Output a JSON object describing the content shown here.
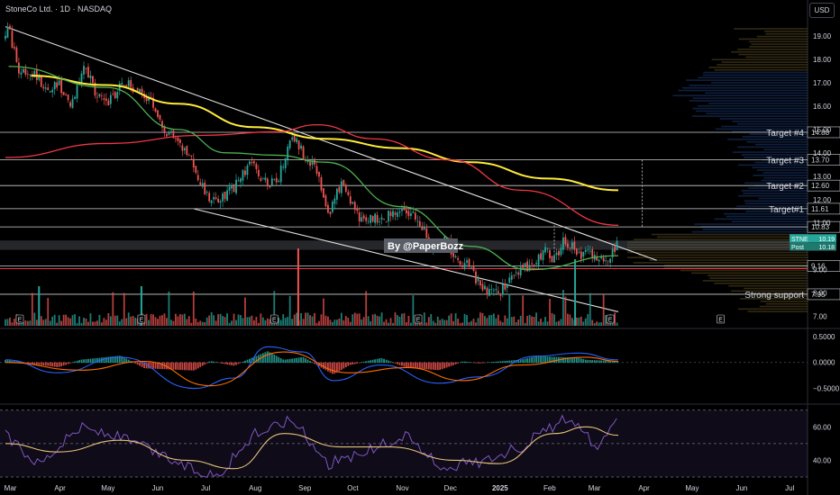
{
  "header": {
    "title": "StoneCo Ltd. · 1D · NASDAQ",
    "currency": "USD"
  },
  "annotations": {
    "author": "By @PaperBozz",
    "events_marker": "E"
  },
  "colors": {
    "background": "#000000",
    "up": "#26a69a",
    "down": "#ef5350",
    "ma_short": "#4caf50",
    "ma_mid": "#f23645",
    "ma_long": "#ffeb3b",
    "channel": "#e0e0e0",
    "rsi": "#7e57c2",
    "rsi_ma": "#e6c27a",
    "macd": "#2962ff",
    "signal": "#ff6d00"
  },
  "chart_data": [
    {
      "type": "candlestick",
      "ylim": [
        6.6,
        20.0
      ],
      "y_ticks": [
        "19.00",
        "18.00",
        "17.00",
        "16.00",
        "15.00",
        "14.00",
        "13.00",
        "12.00",
        "11.00",
        "10.00",
        "9.00",
        "8.00",
        "7.00"
      ],
      "x_ticks": [
        "Mar",
        "Apr",
        "May",
        "Jun",
        "Jul",
        "Aug",
        "Sep",
        "Oct",
        "Nov",
        "Dec",
        "2025",
        "Feb",
        "Mar",
        "Apr",
        "May",
        "Jun",
        "Jul"
      ],
      "price_path": [
        [
          "2024-02-28",
          18.8
        ],
        [
          "2024-03-01",
          19.3
        ],
        [
          "2024-03-08",
          17.4
        ],
        [
          "2024-03-15",
          17.6
        ],
        [
          "2024-03-25",
          16.6
        ],
        [
          "2024-04-01",
          16.9
        ],
        [
          "2024-04-10",
          16.1
        ],
        [
          "2024-04-17",
          17.8
        ],
        [
          "2024-04-25",
          16.5
        ],
        [
          "2024-05-02",
          16.0
        ],
        [
          "2024-05-10",
          17.0
        ],
        [
          "2024-05-20",
          16.8
        ],
        [
          "2024-05-28",
          16.3
        ],
        [
          "2024-06-05",
          15.0
        ],
        [
          "2024-06-15",
          14.6
        ],
        [
          "2024-06-25",
          13.4
        ],
        [
          "2024-07-03",
          12.1
        ],
        [
          "2024-07-10",
          12.0
        ],
        [
          "2024-07-20",
          12.5
        ],
        [
          "2024-07-30",
          13.5
        ],
        [
          "2024-08-06",
          13.0
        ],
        [
          "2024-08-15",
          12.6
        ],
        [
          "2024-08-25",
          14.8
        ],
        [
          "2024-09-01",
          14.0
        ],
        [
          "2024-09-10",
          13.2
        ],
        [
          "2024-09-17",
          11.4
        ],
        [
          "2024-09-25",
          12.7
        ],
        [
          "2024-10-05",
          11.3
        ],
        [
          "2024-10-15",
          11.2
        ],
        [
          "2024-10-25",
          11.3
        ],
        [
          "2024-11-05",
          11.6
        ],
        [
          "2024-11-12",
          11.2
        ],
        [
          "2024-11-20",
          9.9
        ],
        [
          "2024-11-28",
          10.4
        ],
        [
          "2024-12-05",
          9.6
        ],
        [
          "2024-12-15",
          9.0
        ],
        [
          "2024-12-22",
          8.2
        ],
        [
          "2025-01-01",
          8.0
        ],
        [
          "2025-01-10",
          8.6
        ],
        [
          "2025-01-20",
          9.2
        ],
        [
          "2025-01-30",
          9.8
        ],
        [
          "2025-02-05",
          9.5
        ],
        [
          "2025-02-12",
          10.3
        ],
        [
          "2025-02-20",
          9.6
        ],
        [
          "2025-02-26",
          9.9
        ],
        [
          "2025-03-05",
          9.3
        ],
        [
          "2025-03-12",
          9.7
        ],
        [
          "2025-03-17",
          10.2
        ]
      ],
      "horizontal_levels": [
        {
          "value": 14.88,
          "label": "14.88",
          "note": "Target #4"
        },
        {
          "value": 13.7,
          "label": "13.70",
          "note": "Target #3"
        },
        {
          "value": 12.6,
          "label": "12.60",
          "note": "Target #2"
        },
        {
          "value": 11.61,
          "label": "11.61",
          "note": "Target#1"
        },
        {
          "value": 10.83,
          "label": "10.83",
          "note": ""
        },
        {
          "value": 9.16,
          "label": "9.16",
          "note": ""
        },
        {
          "value": 7.95,
          "label": "7.95",
          "note": "Strong support"
        }
      ],
      "price_labels": [
        {
          "name": "STNE",
          "value": "10.19"
        },
        {
          "name": "Post",
          "value": "10.18"
        }
      ],
      "channel": {
        "upper": [
          [
            "2024-02-28",
            19.4
          ],
          [
            "2025-04-10",
            9.4
          ]
        ],
        "lower": [
          [
            "2024-06-25",
            11.6
          ],
          [
            "2025-03-17",
            7.2
          ]
        ]
      },
      "moving_averages": [
        {
          "key": "ma_long",
          "points": [
            [
              "2024-03-15",
              17.3
            ],
            [
              "2024-05-01",
              16.9
            ],
            [
              "2024-06-15",
              16.1
            ],
            [
              "2024-08-01",
              15.1
            ],
            [
              "2024-09-15",
              14.6
            ],
            [
              "2024-11-01",
              14.2
            ],
            [
              "2024-12-15",
              13.6
            ],
            [
              "2025-02-01",
              12.9
            ],
            [
              "2025-03-17",
              12.4
            ]
          ]
        },
        {
          "key": "ma_mid",
          "points": [
            [
              "2024-02-28",
              13.8
            ],
            [
              "2024-05-01",
              14.4
            ],
            [
              "2024-07-01",
              14.75
            ],
            [
              "2024-08-15",
              14.9
            ],
            [
              "2024-09-10",
              15.2
            ],
            [
              "2024-10-15",
              14.6
            ],
            [
              "2024-12-01",
              13.7
            ],
            [
              "2025-01-15",
              12.4
            ],
            [
              "2025-03-17",
              10.9
            ]
          ]
        },
        {
          "key": "ma_short",
          "points": [
            [
              "2024-03-01",
              17.7
            ],
            [
              "2024-05-01",
              16.8
            ],
            [
              "2024-06-15",
              15.0
            ],
            [
              "2024-07-15",
              14.0
            ],
            [
              "2024-08-15",
              13.9
            ],
            [
              "2024-09-15",
              13.6
            ],
            [
              "2024-11-01",
              11.7
            ],
            [
              "2024-12-15",
              10.0
            ],
            [
              "2025-01-20",
              9.0
            ],
            [
              "2025-03-17",
              9.6
            ]
          ]
        }
      ],
      "earnings_dates": [
        "2024-03-08",
        "2024-05-23",
        "2024-08-14",
        "2024-11-12",
        "2025-03-12",
        "2025-05-20"
      ]
    },
    {
      "type": "macd",
      "ylim": [
        -0.75,
        0.6
      ],
      "y_ticks": [
        "0.5000",
        "0.0000",
        "−0.5000"
      ],
      "lines": [
        {
          "key": "macd",
          "points": [
            [
              "2024-02-28",
              0.05
            ],
            [
              "2024-04-01",
              -0.2
            ],
            [
              "2024-05-10",
              0.1
            ],
            [
              "2024-06-25",
              -0.5
            ],
            [
              "2024-07-20",
              -0.3
            ],
            [
              "2024-08-10",
              0.3
            ],
            [
              "2024-09-01",
              0.2
            ],
            [
              "2024-09-20",
              -0.35
            ],
            [
              "2024-10-20",
              -0.05
            ],
            [
              "2024-11-25",
              -0.4
            ],
            [
              "2024-12-20",
              -0.28
            ],
            [
              "2025-01-25",
              0.12
            ],
            [
              "2025-02-20",
              0.18
            ],
            [
              "2025-03-17",
              0.05
            ]
          ]
        },
        {
          "key": "signal",
          "points": [
            [
              "2024-02-28",
              0.0
            ],
            [
              "2024-04-15",
              -0.15
            ],
            [
              "2024-05-25",
              0.02
            ],
            [
              "2024-07-05",
              -0.45
            ],
            [
              "2024-08-20",
              0.2
            ],
            [
              "2024-09-30",
              -0.2
            ],
            [
              "2024-11-05",
              -0.1
            ],
            [
              "2024-12-10",
              -0.35
            ],
            [
              "2025-01-15",
              -0.05
            ],
            [
              "2025-02-25",
              0.1
            ],
            [
              "2025-03-17",
              0.02
            ]
          ]
        }
      ]
    },
    {
      "type": "rsi",
      "ylim": [
        30,
        72
      ],
      "y_ticks": [
        "60.00",
        "40.00"
      ],
      "bands": [
        70,
        30
      ],
      "lines": [
        {
          "key": "rsi",
          "points": [
            [
              "2024-02-28",
              55
            ],
            [
              "2024-03-20",
              38
            ],
            [
              "2024-04-15",
              60
            ],
            [
              "2024-05-15",
              52
            ],
            [
              "2024-06-25",
              34
            ],
            [
              "2024-07-10",
              31
            ],
            [
              "2024-08-01",
              55
            ],
            [
              "2024-08-25",
              65
            ],
            [
              "2024-09-17",
              38
            ],
            [
              "2024-10-10",
              45
            ],
            [
              "2024-11-05",
              55
            ],
            [
              "2024-11-25",
              36
            ],
            [
              "2024-12-20",
              39
            ],
            [
              "2025-01-15",
              48
            ],
            [
              "2025-02-10",
              64
            ],
            [
              "2025-02-25",
              56
            ],
            [
              "2025-03-05",
              45
            ],
            [
              "2025-03-17",
              68
            ]
          ]
        },
        {
          "key": "rsi_ma",
          "points": [
            [
              "2024-02-28",
              50
            ],
            [
              "2024-04-01",
              45
            ],
            [
              "2024-05-10",
              52
            ],
            [
              "2024-06-20",
              40
            ],
            [
              "2024-07-20",
              35
            ],
            [
              "2024-08-20",
              56
            ],
            [
              "2024-09-25",
              48
            ],
            [
              "2024-10-25",
              48
            ],
            [
              "2024-12-05",
              40
            ],
            [
              "2025-01-01",
              38
            ],
            [
              "2025-02-05",
              56
            ],
            [
              "2025-02-25",
              60
            ],
            [
              "2025-03-17",
              55
            ]
          ]
        }
      ]
    }
  ]
}
